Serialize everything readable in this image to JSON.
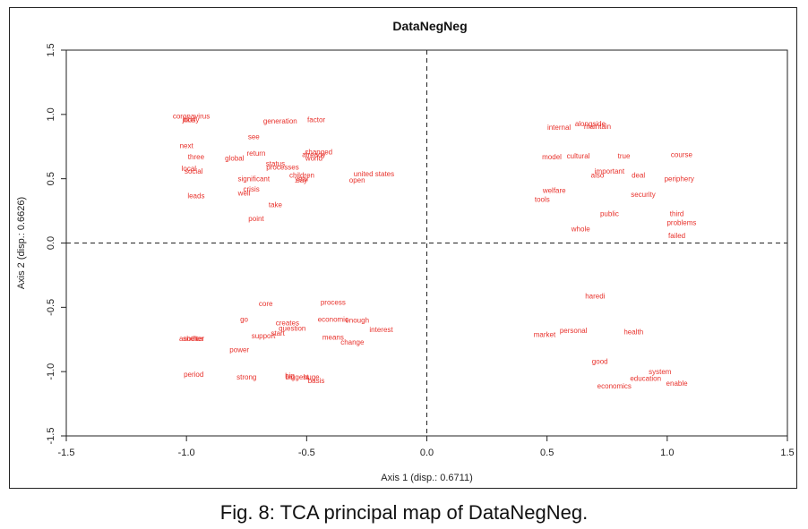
{
  "caption": "Fig. 8: TCA principal map of DataNegNeg.",
  "chart_data": {
    "type": "scatter",
    "title": "DataNegNeg",
    "xlabel": "Axis 1 (disp.: 0.6711)",
    "ylabel": "Axis 2 (disp.: 0.6626)",
    "xlim": [
      -1.5,
      1.5
    ],
    "ylim": [
      -1.5,
      1.5
    ],
    "xticks": [
      "-1.5",
      "-1.0",
      "-0.5",
      "0.0",
      "0.5",
      "1.0",
      "1.5"
    ],
    "yticks": [
      "-1.5",
      "-1.0",
      "-0.5",
      "0.0",
      "0.5",
      "1.0",
      "1.5"
    ],
    "reference_lines": {
      "x": 0,
      "y": 0,
      "style": "dashed"
    },
    "grid": false,
    "point_color": "#e8322c",
    "points": [
      {
        "label": "coronavirus",
        "x": -0.98,
        "y": 0.99
      },
      {
        "label": "jobs",
        "x": -0.99,
        "y": 0.96
      },
      {
        "label": "likely",
        "x": -0.98,
        "y": 0.96
      },
      {
        "label": "generation",
        "x": -0.61,
        "y": 0.95
      },
      {
        "label": "factor",
        "x": -0.46,
        "y": 0.96
      },
      {
        "label": "see",
        "x": -0.72,
        "y": 0.83
      },
      {
        "label": "next",
        "x": -1.0,
        "y": 0.76
      },
      {
        "label": "return",
        "x": -0.71,
        "y": 0.7
      },
      {
        "label": "changed",
        "x": -0.45,
        "y": 0.71
      },
      {
        "label": "already",
        "x": -0.47,
        "y": 0.69
      },
      {
        "label": "three",
        "x": -0.96,
        "y": 0.67
      },
      {
        "label": "global",
        "x": -0.8,
        "y": 0.66
      },
      {
        "label": "world",
        "x": -0.47,
        "y": 0.66
      },
      {
        "label": "status",
        "x": -0.63,
        "y": 0.62
      },
      {
        "label": "processes",
        "x": -0.6,
        "y": 0.59
      },
      {
        "label": "local",
        "x": -0.99,
        "y": 0.58
      },
      {
        "label": "social",
        "x": -0.97,
        "y": 0.56
      },
      {
        "label": "children",
        "x": -0.52,
        "y": 0.53
      },
      {
        "label": "significant",
        "x": -0.72,
        "y": 0.5
      },
      {
        "label": "year",
        "x": -0.52,
        "y": 0.5
      },
      {
        "label": "say",
        "x": -0.52,
        "y": 0.49
      },
      {
        "label": "united states",
        "x": -0.22,
        "y": 0.54
      },
      {
        "label": "open",
        "x": -0.29,
        "y": 0.49
      },
      {
        "label": "crisis",
        "x": -0.73,
        "y": 0.42
      },
      {
        "label": "leads",
        "x": -0.96,
        "y": 0.37
      },
      {
        "label": "well",
        "x": -0.76,
        "y": 0.39
      },
      {
        "label": "take",
        "x": -0.63,
        "y": 0.3
      },
      {
        "label": "point",
        "x": -0.71,
        "y": 0.19
      },
      {
        "label": "alongside",
        "x": 0.68,
        "y": 0.93
      },
      {
        "label": "maintain",
        "x": 0.71,
        "y": 0.91
      },
      {
        "label": "internal",
        "x": 0.55,
        "y": 0.9
      },
      {
        "label": "model",
        "x": 0.52,
        "y": 0.67
      },
      {
        "label": "cultural",
        "x": 0.63,
        "y": 0.68
      },
      {
        "label": "true",
        "x": 0.82,
        "y": 0.68
      },
      {
        "label": "course",
        "x": 1.06,
        "y": 0.69
      },
      {
        "label": "important",
        "x": 0.76,
        "y": 0.56
      },
      {
        "label": "also",
        "x": 0.71,
        "y": 0.53
      },
      {
        "label": "deal",
        "x": 0.88,
        "y": 0.53
      },
      {
        "label": "periphery",
        "x": 1.05,
        "y": 0.5
      },
      {
        "label": "welfare",
        "x": 0.53,
        "y": 0.41
      },
      {
        "label": "tools",
        "x": 0.48,
        "y": 0.34
      },
      {
        "label": "security",
        "x": 0.9,
        "y": 0.38
      },
      {
        "label": "public",
        "x": 0.76,
        "y": 0.23
      },
      {
        "label": "third",
        "x": 1.04,
        "y": 0.23
      },
      {
        "label": "problems",
        "x": 1.06,
        "y": 0.16
      },
      {
        "label": "whole",
        "x": 0.64,
        "y": 0.11
      },
      {
        "label": "failed",
        "x": 1.04,
        "y": 0.06
      },
      {
        "label": "core",
        "x": -0.67,
        "y": -0.47
      },
      {
        "label": "process",
        "x": -0.39,
        "y": -0.46
      },
      {
        "label": "go",
        "x": -0.76,
        "y": -0.59
      },
      {
        "label": "economic",
        "x": -0.39,
        "y": -0.59
      },
      {
        "label": "enough",
        "x": -0.29,
        "y": -0.6
      },
      {
        "label": "creates",
        "x": -0.58,
        "y": -0.62
      },
      {
        "label": "question",
        "x": -0.56,
        "y": -0.66
      },
      {
        "label": "interest",
        "x": -0.19,
        "y": -0.67
      },
      {
        "label": "start",
        "x": -0.62,
        "y": -0.7
      },
      {
        "label": "support",
        "x": -0.68,
        "y": -0.72
      },
      {
        "label": "means",
        "x": -0.39,
        "y": -0.73
      },
      {
        "label": "another",
        "x": -0.98,
        "y": -0.74
      },
      {
        "label": "shelter",
        "x": -0.97,
        "y": -0.74
      },
      {
        "label": "change",
        "x": -0.31,
        "y": -0.77
      },
      {
        "label": "power",
        "x": -0.78,
        "y": -0.83
      },
      {
        "label": "period",
        "x": -0.97,
        "y": -1.02
      },
      {
        "label": "strong",
        "x": -0.75,
        "y": -1.04
      },
      {
        "label": "big",
        "x": -0.57,
        "y": -1.03
      },
      {
        "label": "biggest",
        "x": -0.54,
        "y": -1.04
      },
      {
        "label": "huge",
        "x": -0.48,
        "y": -1.04
      },
      {
        "label": "basis",
        "x": -0.46,
        "y": -1.07
      },
      {
        "label": "haredi",
        "x": 0.7,
        "y": -0.41
      },
      {
        "label": "personal",
        "x": 0.61,
        "y": -0.68
      },
      {
        "label": "market",
        "x": 0.49,
        "y": -0.71
      },
      {
        "label": "health",
        "x": 0.86,
        "y": -0.69
      },
      {
        "label": "good",
        "x": 0.72,
        "y": -0.92
      },
      {
        "label": "system",
        "x": 0.97,
        "y": -1.0
      },
      {
        "label": "education",
        "x": 0.91,
        "y": -1.05
      },
      {
        "label": "enable",
        "x": 1.04,
        "y": -1.09
      },
      {
        "label": "economics",
        "x": 0.78,
        "y": -1.11
      }
    ]
  }
}
